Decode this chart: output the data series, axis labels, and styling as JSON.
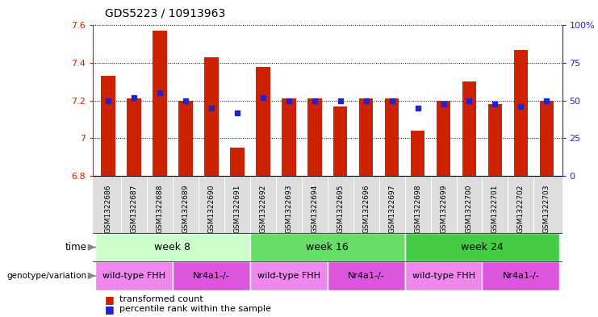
{
  "title": "GDS5223 / 10913963",
  "samples": [
    "GSM1322686",
    "GSM1322687",
    "GSM1322688",
    "GSM1322689",
    "GSM1322690",
    "GSM1322691",
    "GSM1322692",
    "GSM1322693",
    "GSM1322694",
    "GSM1322695",
    "GSM1322696",
    "GSM1322697",
    "GSM1322698",
    "GSM1322699",
    "GSM1322700",
    "GSM1322701",
    "GSM1322702",
    "GSM1322703"
  ],
  "transformed_count": [
    7.33,
    7.21,
    7.57,
    7.2,
    7.43,
    6.95,
    7.38,
    7.21,
    7.21,
    7.17,
    7.21,
    7.21,
    7.04,
    7.2,
    7.3,
    7.18,
    7.47,
    7.2
  ],
  "percentile_rank": [
    50,
    52,
    55,
    50,
    45,
    42,
    52,
    50,
    50,
    50,
    50,
    50,
    45,
    48,
    50,
    48,
    46,
    50
  ],
  "ymin": 6.8,
  "ymax": 7.6,
  "yticks_left": [
    6.8,
    7.0,
    7.2,
    7.4,
    7.6
  ],
  "ytick_labels_left": [
    "6.8",
    "7",
    "7.2",
    "7.4",
    "7.6"
  ],
  "right_yticks": [
    0,
    25,
    50,
    75,
    100
  ],
  "right_ytick_labels": [
    "0",
    "25",
    "50",
    "75",
    "100%"
  ],
  "bar_color": "#cc2200",
  "dot_color": "#2222cc",
  "time_groups": [
    {
      "label": "week 8",
      "start": 0,
      "end": 6,
      "color": "#ccffcc"
    },
    {
      "label": "week 16",
      "start": 6,
      "end": 12,
      "color": "#66dd66"
    },
    {
      "label": "week 24",
      "start": 12,
      "end": 18,
      "color": "#44cc44"
    }
  ],
  "genotype_groups": [
    {
      "label": "wild-type FHH",
      "start": 0,
      "end": 3,
      "color": "#ee88ee"
    },
    {
      "label": "Nr4a1-/-",
      "start": 3,
      "end": 6,
      "color": "#dd55dd"
    },
    {
      "label": "wild-type FHH",
      "start": 6,
      "end": 9,
      "color": "#ee88ee"
    },
    {
      "label": "Nr4a1-/-",
      "start": 9,
      "end": 12,
      "color": "#dd55dd"
    },
    {
      "label": "wild-type FHH",
      "start": 12,
      "end": 15,
      "color": "#ee88ee"
    },
    {
      "label": "Nr4a1-/-",
      "start": 15,
      "end": 18,
      "color": "#dd55dd"
    }
  ],
  "legend_items": [
    {
      "label": "transformed count",
      "color": "#cc2200"
    },
    {
      "label": "percentile rank within the sample",
      "color": "#2222cc"
    }
  ],
  "background_color": "#ffffff",
  "axis_label_color_left": "#cc2200",
  "axis_label_color_right": "#2222cc",
  "xtick_bg": "#dddddd",
  "gap_color": "#888888"
}
